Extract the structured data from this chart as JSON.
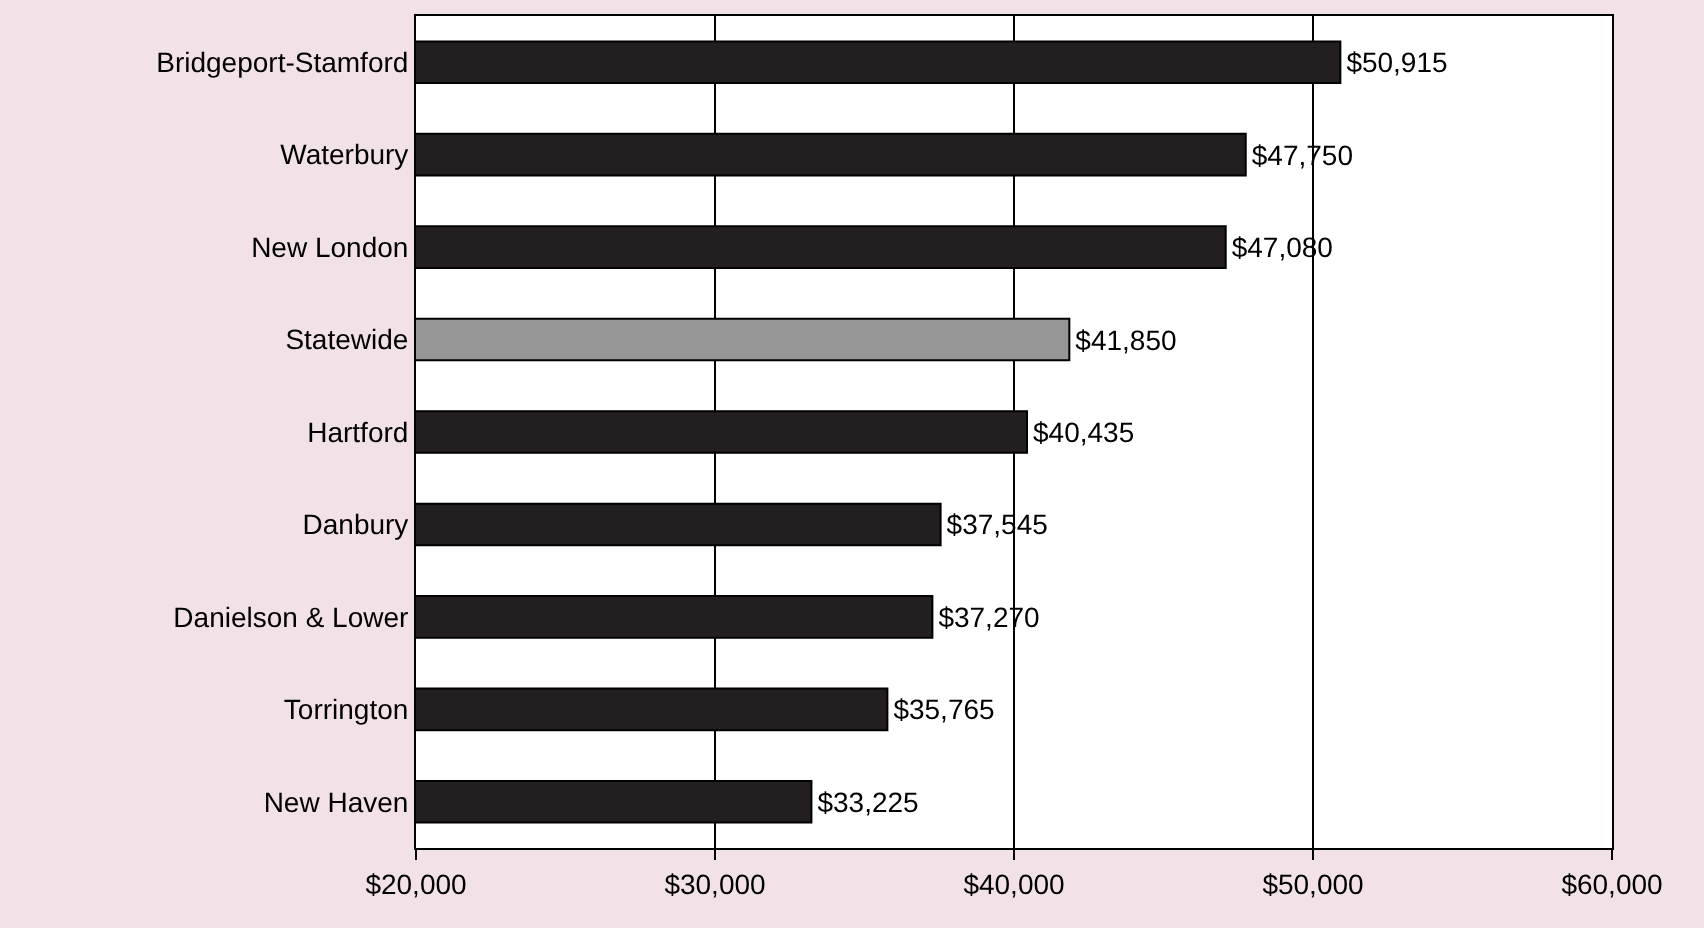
{
  "chart_data": {
    "type": "bar",
    "orientation": "horizontal",
    "categories": [
      "Bridgeport-Stamford",
      "Waterbury",
      "New London",
      "Statewide",
      "Hartford",
      "Danbury",
      "Danielson & Lower",
      "Torrington",
      "New Haven"
    ],
    "values": [
      50915,
      47750,
      47080,
      41850,
      40435,
      37545,
      37270,
      35765,
      33225
    ],
    "colors": [
      "#231f20",
      "#231f20",
      "#231f20",
      "#969696",
      "#231f20",
      "#231f20",
      "#231f20",
      "#231f20",
      "#231f20"
    ],
    "value_labels": [
      "$50,915",
      "$47,750",
      "$47,080",
      "$41,850",
      "$40,435",
      "$37,545",
      "$37,270",
      "$35,765",
      "$33,225"
    ],
    "xlim": [
      20000,
      60000
    ],
    "xticks": [
      {
        "value": 20000,
        "label": "$20,000"
      },
      {
        "value": 30000,
        "label": "$30,000"
      },
      {
        "value": 40000,
        "label": "$40,000"
      },
      {
        "value": 50000,
        "label": "$50,000"
      },
      {
        "value": 60000,
        "label": "$60,000"
      }
    ],
    "grid": "x",
    "legend": false
  }
}
